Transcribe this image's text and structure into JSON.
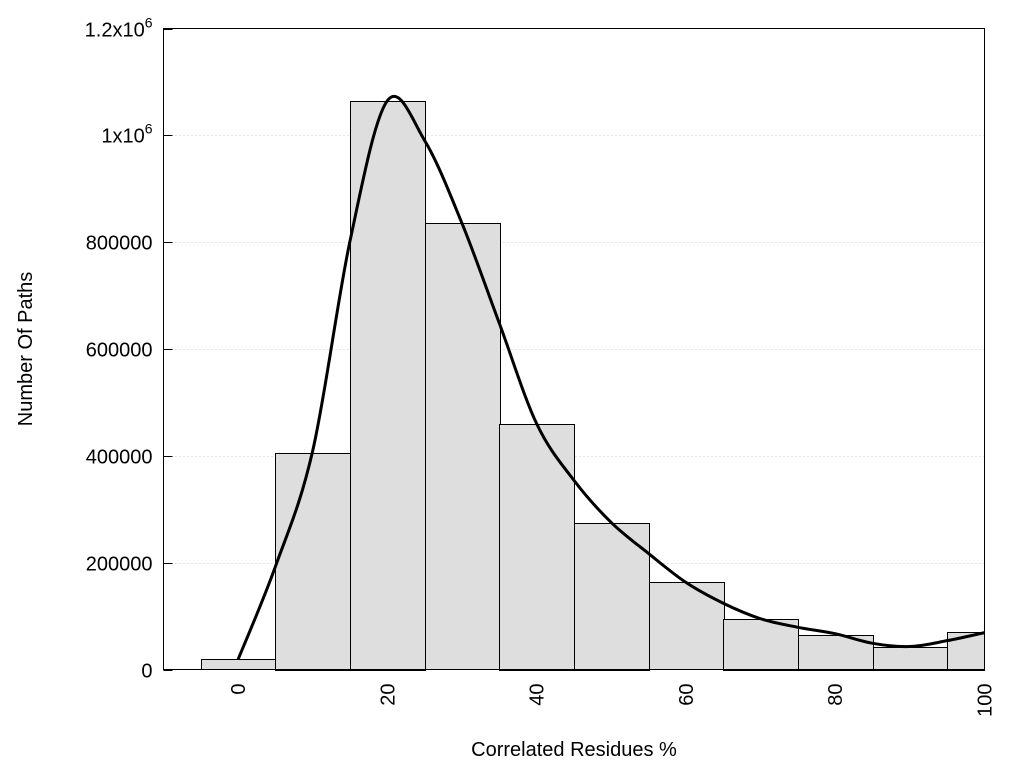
{
  "chart_data": {
    "type": "bar",
    "title": "",
    "xlabel": "Correlated Residues %",
    "ylabel": "Number Of Paths",
    "xlim": [
      -10,
      100
    ],
    "ylim": [
      0,
      1200000
    ],
    "bin_width": 10,
    "grid": "horizontal dotted",
    "x_ticks": [
      0,
      20,
      40,
      60,
      80,
      100
    ],
    "x_tick_labels": [
      "0",
      "20",
      "40",
      "60",
      "80",
      "100"
    ],
    "y_ticks": [
      0,
      200000,
      400000,
      600000,
      800000,
      1000000,
      1200000
    ],
    "y_tick_labels": [
      {
        "base": "0",
        "sup": ""
      },
      {
        "base": "200000",
        "sup": ""
      },
      {
        "base": "400000",
        "sup": ""
      },
      {
        "base": "600000",
        "sup": ""
      },
      {
        "base": "800000",
        "sup": ""
      },
      {
        "base": "1x10",
        "sup": "6"
      },
      {
        "base": "1.2x10",
        "sup": "6"
      }
    ],
    "categories": [
      0,
      10,
      20,
      30,
      40,
      50,
      60,
      70,
      80,
      90,
      100
    ],
    "values": [
      19000,
      406000,
      1065000,
      835000,
      460000,
      275000,
      163000,
      95000,
      65000,
      43000,
      71000
    ],
    "bar_color": "#dedede",
    "curve": {
      "type": "line",
      "color": "#000000",
      "x": [
        0,
        5,
        10,
        15,
        20,
        25,
        30,
        35,
        40,
        45,
        50,
        55,
        60,
        65,
        70,
        75,
        80,
        85,
        90,
        95,
        100
      ],
      "y": [
        19000,
        193000,
        410000,
        803000,
        1065000,
        990000,
        835000,
        648000,
        460000,
        354000,
        275000,
        217000,
        163000,
        124000,
        95000,
        79000,
        67000,
        49000,
        43000,
        54000,
        69000
      ]
    }
  }
}
